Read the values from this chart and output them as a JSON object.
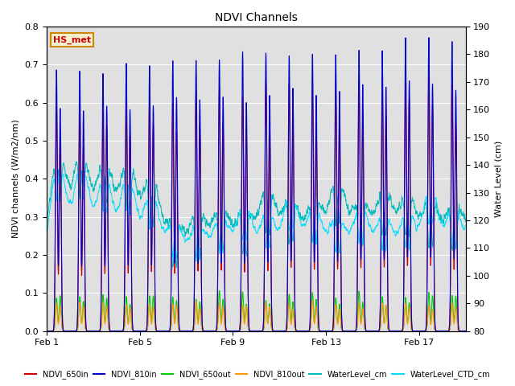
{
  "title": "NDVI Channels",
  "ylabel_left": "NDVI channels (W/m2/nm)",
  "ylabel_right": "Water Level (cm)",
  "ylim_left": [
    0.0,
    0.8
  ],
  "ylim_right": [
    80,
    190
  ],
  "yticks_left": [
    0.0,
    0.1,
    0.2,
    0.3,
    0.4,
    0.5,
    0.6,
    0.7,
    0.8
  ],
  "yticks_right": [
    80,
    90,
    100,
    110,
    120,
    130,
    140,
    150,
    160,
    170,
    180,
    190
  ],
  "xtick_labels": [
    "Feb 1",
    "Feb 5",
    "Feb 9",
    "Feb 13",
    "Feb 17"
  ],
  "xtick_positions": [
    0,
    4,
    8,
    12,
    16
  ],
  "xlim": [
    0,
    18
  ],
  "bg_color": "#e0e0e0",
  "annotation_text": "HS_met",
  "annotation_color": "#cc0000",
  "colors": {
    "ndvi_650in": "#cc0000",
    "ndvi_810in": "#0000cc",
    "ndvi_650out": "#00cc00",
    "ndvi_810out": "#ff9900",
    "water_level": "#00bbbb",
    "water_ctd": "#00ddff"
  },
  "n_days": 19,
  "figsize": [
    6.4,
    4.8
  ],
  "dpi": 100
}
